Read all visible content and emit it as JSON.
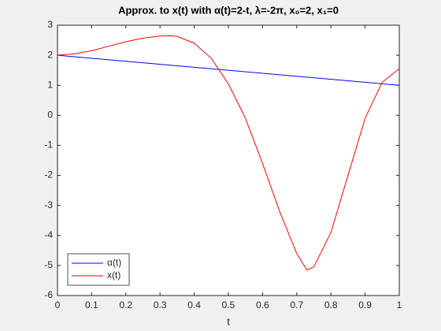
{
  "chart_data": {
    "type": "line",
    "title": "Approx. to x(t) with α(t)=2-t, λ=-2π, x₀=2, x₁=0",
    "xlabel": "t",
    "xlim": [
      0,
      1
    ],
    "xticks": [
      0,
      0.1,
      0.2,
      0.3,
      0.4,
      0.5,
      0.6,
      0.7,
      0.8,
      0.9,
      1
    ],
    "ylim": [
      -6,
      3
    ],
    "yticks": [
      -6,
      -5,
      -4,
      -3,
      -2,
      -1,
      0,
      1,
      2,
      3
    ],
    "grid": false,
    "legend": "lower left",
    "series": [
      {
        "name": "α(t)",
        "color": "#0000ff",
        "x": [
          0,
          1
        ],
        "values": [
          2,
          1
        ]
      },
      {
        "name": "x(t)",
        "color": "#ff0000",
        "x": [
          0,
          0.05,
          0.1,
          0.15,
          0.2,
          0.25,
          0.3,
          0.33,
          0.35,
          0.4,
          0.45,
          0.5,
          0.55,
          0.6,
          0.65,
          0.7,
          0.73,
          0.75,
          0.8,
          0.85,
          0.9,
          0.95,
          1
        ],
        "values": [
          2,
          2.05,
          2.15,
          2.3,
          2.45,
          2.57,
          2.64,
          2.65,
          2.63,
          2.4,
          1.9,
          1.05,
          -0.1,
          -1.6,
          -3.2,
          -4.6,
          -5.15,
          -5.05,
          -3.9,
          -2.0,
          -0.1,
          1.1,
          1.55
        ]
      }
    ]
  }
}
